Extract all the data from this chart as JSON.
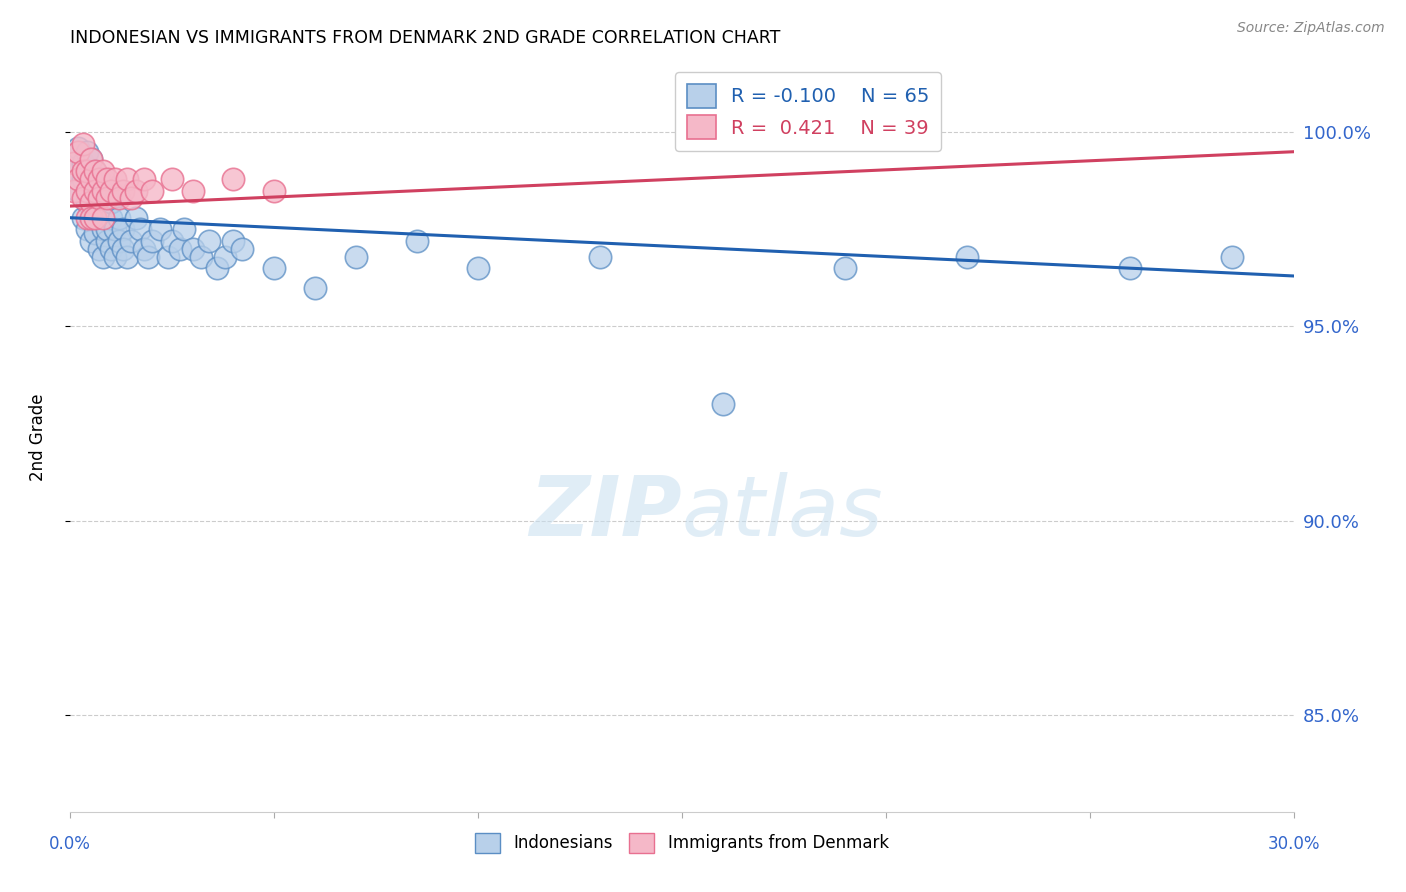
{
  "title": "INDONESIAN VS IMMIGRANTS FROM DENMARK 2ND GRADE CORRELATION CHART",
  "source": "Source: ZipAtlas.com",
  "ylabel": "2nd Grade",
  "ytick_vals": [
    0.85,
    0.9,
    0.95,
    1.0
  ],
  "ytick_labels": [
    "85.0%",
    "90.0%",
    "95.0%",
    "100.0%"
  ],
  "xlim": [
    0.0,
    0.3
  ],
  "ylim": [
    0.825,
    1.018
  ],
  "blue_R": -0.1,
  "blue_N": 65,
  "pink_R": 0.421,
  "pink_N": 39,
  "blue_color": "#b8d0ea",
  "blue_edge_color": "#5b8ec4",
  "blue_line_color": "#2060b0",
  "pink_color": "#f5b8c8",
  "pink_edge_color": "#e87090",
  "pink_line_color": "#d04060",
  "watermark_color": "#c8dff0",
  "blue_scatter_x": [
    0.001,
    0.002,
    0.002,
    0.003,
    0.003,
    0.003,
    0.004,
    0.004,
    0.004,
    0.005,
    0.005,
    0.005,
    0.006,
    0.006,
    0.006,
    0.006,
    0.007,
    0.007,
    0.007,
    0.008,
    0.008,
    0.008,
    0.008,
    0.009,
    0.009,
    0.009,
    0.01,
    0.01,
    0.01,
    0.011,
    0.011,
    0.012,
    0.012,
    0.013,
    0.013,
    0.014,
    0.015,
    0.016,
    0.017,
    0.018,
    0.019,
    0.02,
    0.022,
    0.024,
    0.025,
    0.027,
    0.028,
    0.03,
    0.032,
    0.034,
    0.036,
    0.038,
    0.04,
    0.042,
    0.05,
    0.06,
    0.07,
    0.085,
    0.1,
    0.13,
    0.16,
    0.19,
    0.22,
    0.26,
    0.285
  ],
  "blue_scatter_y": [
    0.99,
    0.996,
    0.985,
    0.988,
    0.992,
    0.978,
    0.982,
    0.995,
    0.975,
    0.988,
    0.993,
    0.972,
    0.98,
    0.985,
    0.99,
    0.974,
    0.978,
    0.983,
    0.97,
    0.975,
    0.988,
    0.98,
    0.968,
    0.972,
    0.985,
    0.975,
    0.97,
    0.978,
    0.982,
    0.975,
    0.968,
    0.972,
    0.978,
    0.975,
    0.97,
    0.968,
    0.972,
    0.978,
    0.975,
    0.97,
    0.968,
    0.972,
    0.975,
    0.968,
    0.972,
    0.97,
    0.975,
    0.97,
    0.968,
    0.972,
    0.965,
    0.968,
    0.972,
    0.97,
    0.965,
    0.96,
    0.968,
    0.972,
    0.965,
    0.968,
    0.93,
    0.965,
    0.968,
    0.965,
    0.968
  ],
  "pink_scatter_x": [
    0.001,
    0.001,
    0.002,
    0.002,
    0.003,
    0.003,
    0.003,
    0.004,
    0.004,
    0.004,
    0.005,
    0.005,
    0.005,
    0.005,
    0.006,
    0.006,
    0.006,
    0.007,
    0.007,
    0.008,
    0.008,
    0.008,
    0.009,
    0.009,
    0.01,
    0.011,
    0.012,
    0.013,
    0.014,
    0.015,
    0.016,
    0.018,
    0.02,
    0.025,
    0.03,
    0.04,
    0.05,
    0.16,
    0.17
  ],
  "pink_scatter_y": [
    0.992,
    0.985,
    0.995,
    0.988,
    0.99,
    0.983,
    0.997,
    0.985,
    0.99,
    0.978,
    0.988,
    0.993,
    0.982,
    0.978,
    0.99,
    0.985,
    0.978,
    0.988,
    0.983,
    0.985,
    0.99,
    0.978,
    0.988,
    0.983,
    0.985,
    0.988,
    0.983,
    0.985,
    0.988,
    0.983,
    0.985,
    0.988,
    0.985,
    0.988,
    0.985,
    0.988,
    0.985,
    1.0,
    1.0
  ],
  "blue_trendline_x": [
    0.0,
    0.3
  ],
  "blue_trendline_y": [
    0.978,
    0.963
  ],
  "pink_trendline_x": [
    0.0,
    0.3
  ],
  "pink_trendline_y": [
    0.981,
    0.995
  ]
}
